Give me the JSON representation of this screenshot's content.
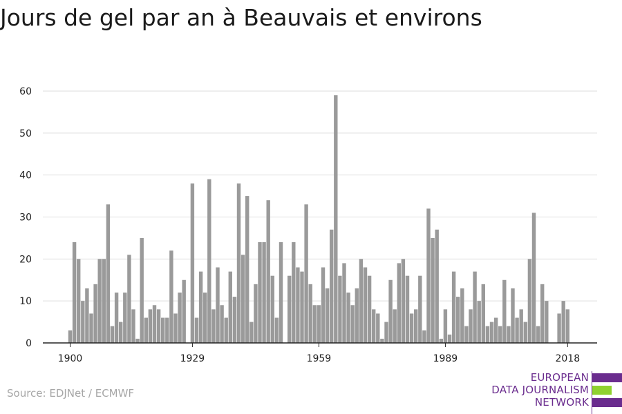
{
  "chart_data": {
    "type": "bar",
    "title": "Jours de gel par an à Beauvais et environs",
    "xlabel": "",
    "ylabel": "",
    "ylim": [
      0,
      60
    ],
    "yticks": [
      0,
      10,
      20,
      30,
      40,
      50,
      60
    ],
    "xticks": [
      1900,
      1929,
      1959,
      1989,
      2018
    ],
    "grid": true,
    "bar_color": "#9a9a9a",
    "x": [
      1900,
      1901,
      1902,
      1903,
      1904,
      1905,
      1906,
      1907,
      1908,
      1909,
      1910,
      1911,
      1912,
      1913,
      1914,
      1915,
      1916,
      1917,
      1918,
      1919,
      1920,
      1921,
      1922,
      1923,
      1924,
      1925,
      1926,
      1927,
      1928,
      1929,
      1930,
      1931,
      1932,
      1933,
      1934,
      1935,
      1936,
      1937,
      1938,
      1939,
      1940,
      1941,
      1942,
      1943,
      1944,
      1945,
      1946,
      1947,
      1948,
      1949,
      1950,
      1951,
      1952,
      1953,
      1954,
      1955,
      1956,
      1957,
      1958,
      1959,
      1960,
      1961,
      1962,
      1963,
      1964,
      1965,
      1966,
      1967,
      1968,
      1969,
      1970,
      1971,
      1972,
      1973,
      1974,
      1975,
      1976,
      1977,
      1978,
      1979,
      1980,
      1981,
      1982,
      1983,
      1984,
      1985,
      1986,
      1987,
      1988,
      1989,
      1990,
      1991,
      1992,
      1993,
      1994,
      1995,
      1996,
      1997,
      1998,
      1999,
      2000,
      2001,
      2002,
      2003,
      2004,
      2005,
      2006,
      2007,
      2008,
      2009,
      2010,
      2011,
      2012,
      2013,
      2014,
      2015,
      2016,
      2017,
      2018
    ],
    "values": [
      3,
      24,
      20,
      10,
      13,
      7,
      14,
      20,
      20,
      33,
      4,
      12,
      5,
      12,
      21,
      8,
      1,
      25,
      6,
      8,
      9,
      8,
      6,
      6,
      22,
      7,
      12,
      15,
      0,
      38,
      6,
      17,
      12,
      39,
      8,
      18,
      9,
      6,
      17,
      11,
      38,
      21,
      35,
      5,
      14,
      24,
      24,
      34,
      16,
      6,
      24,
      0,
      16,
      24,
      18,
      17,
      33,
      14,
      9,
      9,
      18,
      13,
      27,
      59,
      16,
      19,
      12,
      9,
      13,
      20,
      18,
      16,
      8,
      7,
      1,
      5,
      15,
      8,
      19,
      20,
      16,
      7,
      8,
      16,
      3,
      32,
      25,
      27,
      1,
      8,
      2,
      17,
      11,
      13,
      4,
      8,
      17,
      10,
      14,
      4,
      5,
      6,
      4,
      15,
      4,
      13,
      6,
      8,
      5,
      20,
      31,
      4,
      14,
      10,
      0,
      0,
      7,
      10,
      8
    ]
  },
  "source": "Source: EDJNet / ECMWF",
  "logo": {
    "lines": [
      "EUROPEAN",
      "DATA JOURNALISM",
      "NETWORK"
    ],
    "colors": {
      "purple": "#6a2c8e",
      "green": "#8fd12f"
    }
  }
}
